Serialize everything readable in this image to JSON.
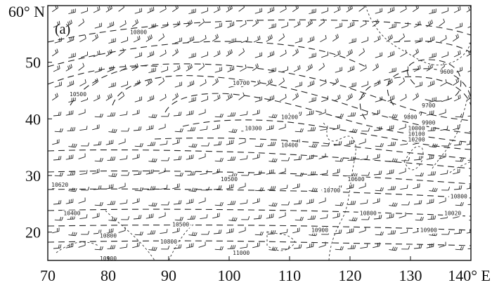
{
  "panel_label": "(a)",
  "y_ticks": [
    {
      "value": 60,
      "label": "60° N"
    },
    {
      "value": 50,
      "label": "50"
    },
    {
      "value": 40,
      "label": "40"
    },
    {
      "value": 30,
      "label": "30"
    },
    {
      "value": 20,
      "label": "20"
    }
  ],
  "x_ticks": [
    {
      "value": 70,
      "label": "70"
    },
    {
      "value": 80,
      "label": "80"
    },
    {
      "value": 90,
      "label": "90"
    },
    {
      "value": 100,
      "label": "100"
    },
    {
      "value": 110,
      "label": "110"
    },
    {
      "value": 120,
      "label": "120"
    },
    {
      "value": 130,
      "label": "130"
    },
    {
      "value": 140,
      "label": "140° E"
    }
  ],
  "lon_range": [
    70,
    140
  ],
  "lat_range": [
    15,
    60
  ],
  "contour_labels": [
    {
      "text": "10700",
      "lon": 102,
      "lat": 46
    },
    {
      "text": "10500",
      "lon": 75,
      "lat": 44
    },
    {
      "text": "10200",
      "lon": 110,
      "lat": 40
    },
    {
      "text": "10300",
      "lon": 104,
      "lat": 38
    },
    {
      "text": "10400",
      "lon": 110,
      "lat": 35
    },
    {
      "text": "10500",
      "lon": 100,
      "lat": 29
    },
    {
      "text": "10620",
      "lon": 72,
      "lat": 28
    },
    {
      "text": "10400",
      "lon": 74,
      "lat": 23
    },
    {
      "text": "10500",
      "lon": 92,
      "lat": 21
    },
    {
      "text": "10800",
      "lon": 80,
      "lat": 19
    },
    {
      "text": "10800",
      "lon": 90,
      "lat": 18
    },
    {
      "text": "11000",
      "lon": 102,
      "lat": 16
    },
    {
      "text": "10900",
      "lon": 80,
      "lat": 15
    },
    {
      "text": "10600",
      "lon": 121,
      "lat": 29
    },
    {
      "text": "10700",
      "lon": 117,
      "lat": 27
    },
    {
      "text": "10800",
      "lon": 123,
      "lat": 23
    },
    {
      "text": "10900",
      "lon": 115,
      "lat": 20
    },
    {
      "text": "10900",
      "lon": 133,
      "lat": 20
    },
    {
      "text": "10800",
      "lon": 138,
      "lat": 26
    },
    {
      "text": "10020",
      "lon": 137,
      "lat": 23
    },
    {
      "text": "9700",
      "lon": 133,
      "lat": 42
    },
    {
      "text": "9800",
      "lon": 130,
      "lat": 40
    },
    {
      "text": "9900",
      "lon": 133,
      "lat": 39
    },
    {
      "text": "10000",
      "lon": 131,
      "lat": 38
    },
    {
      "text": "10100",
      "lon": 131,
      "lat": 37
    },
    {
      "text": "10200",
      "lon": 131,
      "lat": 36
    },
    {
      "text": "9600",
      "lon": 136,
      "lat": 48
    },
    {
      "text": "10800",
      "lon": 85,
      "lat": 55
    }
  ],
  "colors": {
    "ink": "#222222",
    "background": "#ffffff"
  }
}
